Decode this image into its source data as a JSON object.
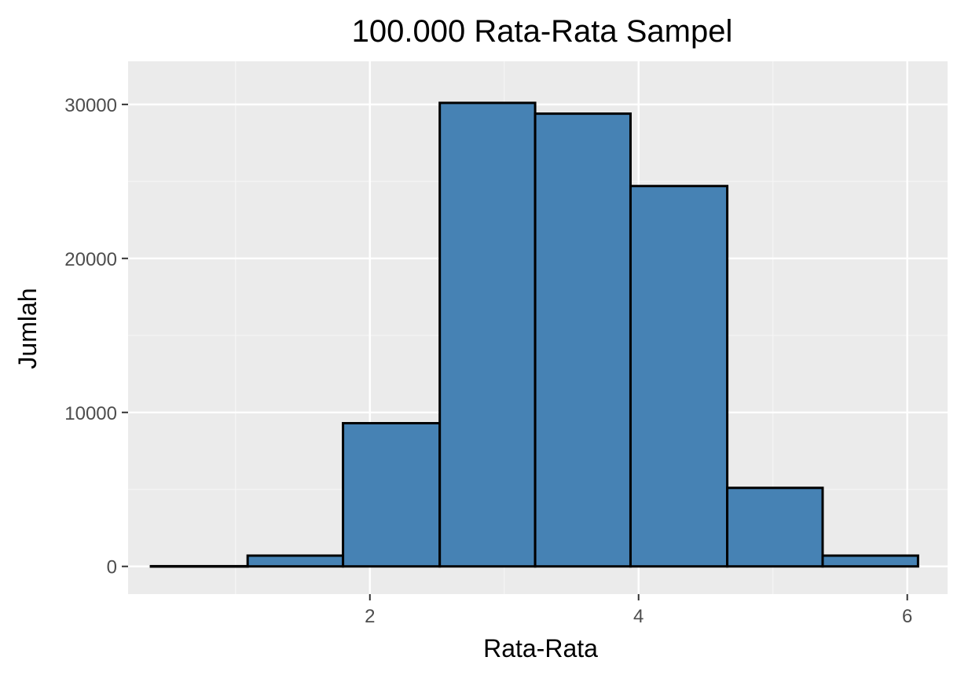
{
  "chart_data": {
    "type": "bar",
    "subtype": "histogram",
    "title": "100.000 Rata-Rata Sampel",
    "xlabel": "Rata-Rata",
    "ylabel": "Jumlah",
    "xlim": [
      0.2,
      6.3
    ],
    "ylim": [
      -1800,
      32800
    ],
    "x_ticks": [
      2,
      4,
      6
    ],
    "x_tick_labels": [
      "2",
      "4",
      "6"
    ],
    "y_ticks": [
      0,
      10000,
      20000,
      30000
    ],
    "y_tick_labels": [
      "0",
      "10000",
      "20000",
      "30000"
    ],
    "grid": true,
    "legend": "none",
    "bins": [
      {
        "x_min": 0.37,
        "x_max": 1.09,
        "count": 15
      },
      {
        "x_min": 1.09,
        "x_max": 1.8,
        "count": 700
      },
      {
        "x_min": 1.8,
        "x_max": 2.52,
        "count": 9300
      },
      {
        "x_min": 2.52,
        "x_max": 3.23,
        "count": 30100
      },
      {
        "x_min": 3.23,
        "x_max": 3.94,
        "count": 29400
      },
      {
        "x_min": 3.94,
        "x_max": 4.66,
        "count": 24700
      },
      {
        "x_min": 4.66,
        "x_max": 5.37,
        "count": 5100
      },
      {
        "x_min": 5.37,
        "x_max": 6.08,
        "count": 700
      }
    ],
    "colors": {
      "panel_background": "#EBEBEB",
      "grid_major": "#FFFFFF",
      "grid_minor": "#F5F5F5",
      "bar_fill": "#4682B4",
      "bar_outline": "#000000",
      "tick_mark": "#333333"
    }
  }
}
